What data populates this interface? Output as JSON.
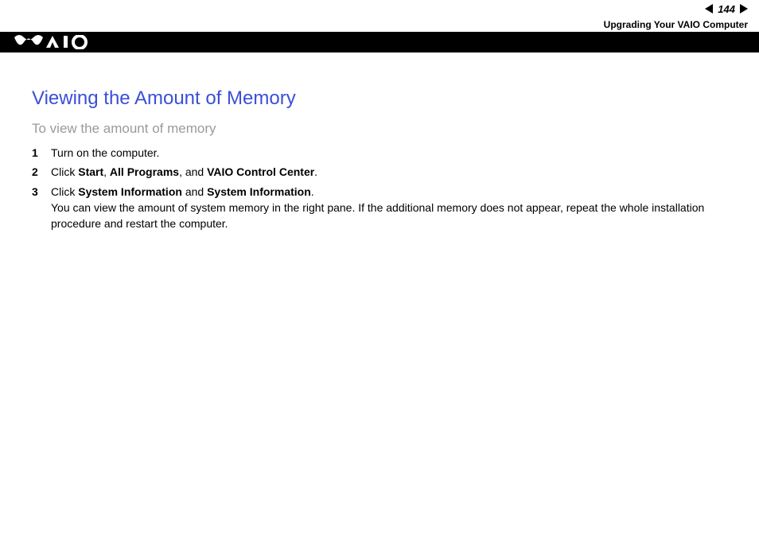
{
  "header": {
    "page_number": "144",
    "section": "Upgrading Your VAIO Computer",
    "logo_name": "vaio-logo"
  },
  "colors": {
    "title_color": "#3a4fd8",
    "subtitle_color": "#9a9a9a",
    "black": "#000000",
    "white": "#ffffff"
  },
  "content": {
    "title": "Viewing the Amount of Memory",
    "subtitle": "To view the amount of memory",
    "title_fontsize": 24,
    "subtitle_fontsize": 17,
    "body_fontsize": 14,
    "steps": [
      {
        "parts": [
          {
            "text": "Turn on the computer.",
            "bold": false
          }
        ]
      },
      {
        "parts": [
          {
            "text": "Click ",
            "bold": false
          },
          {
            "text": "Start",
            "bold": true
          },
          {
            "text": ", ",
            "bold": false
          },
          {
            "text": "All Programs",
            "bold": true
          },
          {
            "text": ", and ",
            "bold": false
          },
          {
            "text": "VAIO Control Center",
            "bold": true
          },
          {
            "text": ".",
            "bold": false
          }
        ]
      },
      {
        "parts": [
          {
            "text": "Click ",
            "bold": false
          },
          {
            "text": "System Information",
            "bold": true
          },
          {
            "text": " and ",
            "bold": false
          },
          {
            "text": "System Information",
            "bold": true
          },
          {
            "text": ".",
            "bold": false
          }
        ],
        "extra": "You can view the amount of system memory in the right pane. If the additional memory does not appear, repeat the whole installation procedure and restart the computer."
      }
    ]
  }
}
